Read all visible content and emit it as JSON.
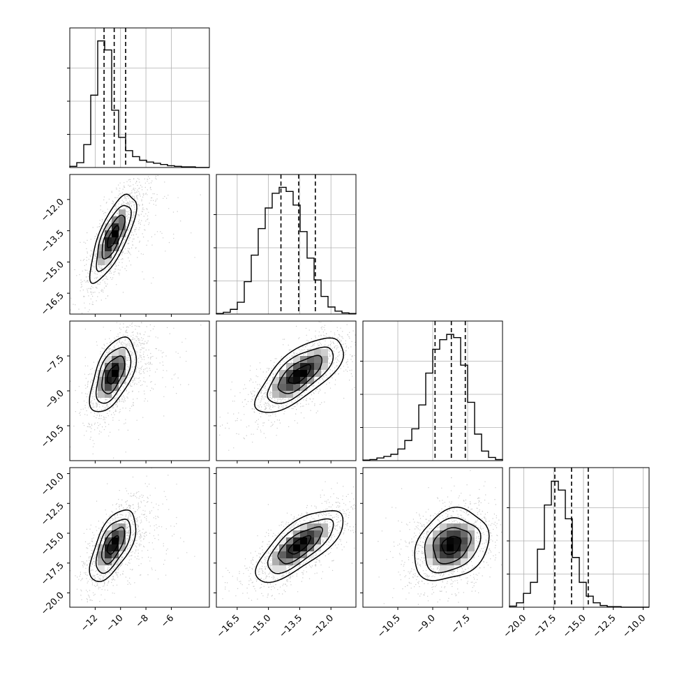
{
  "chart_data": {
    "type": "corner",
    "title": "",
    "dims": 4,
    "grid": true,
    "colors": {
      "frame": "#000000",
      "grid": "#b0b0b0",
      "points": "#8a8a8a",
      "density_dark": "#000000",
      "density_light": "#e8e8e8"
    },
    "params": [
      {
        "index": 0,
        "range": [
          -14.0,
          -3.0
        ],
        "ticks": [
          -12,
          -10,
          -8,
          -6
        ],
        "tick_labels": [
          "−12",
          "−10",
          "−8",
          "−6"
        ],
        "quantiles": [
          -11.3,
          -10.5,
          -9.6
        ]
      },
      {
        "index": 1,
        "range": [
          -17.5,
          -10.8
        ],
        "ticks": [
          -16.5,
          -15.0,
          -13.5,
          -12.0
        ],
        "tick_labels": [
          "−16.5",
          "−15.0",
          "−13.5",
          "−12.0"
        ],
        "quantiles": [
          -14.4,
          -13.55,
          -12.75
        ]
      },
      {
        "index": 2,
        "range": [
          -12.0,
          -6.0
        ],
        "ticks": [
          -10.5,
          -9.0,
          -7.5
        ],
        "tick_labels": [
          "−10.5",
          "−9.0",
          "−7.5"
        ],
        "quantiles": [
          -8.9,
          -8.2,
          -7.6
        ]
      },
      {
        "index": 3,
        "range": [
          -21.2,
          -9.5
        ],
        "ticks": [
          -20.0,
          -17.5,
          -15.0,
          -12.5,
          -10.0
        ],
        "tick_labels": [
          "−20.0",
          "−17.5",
          "−15.0",
          "−12.5",
          "−10.0"
        ],
        "quantiles": [
          -17.4,
          -16.0,
          -14.6
        ]
      }
    ],
    "histograms": [
      {
        "param": 0,
        "bins": [
          -14.0,
          -13.45,
          -12.9,
          -12.35,
          -11.8,
          -11.25,
          -10.7,
          -10.15,
          -9.6,
          -9.05,
          -8.5,
          -7.95,
          -7.4,
          -6.85,
          -6.3,
          -5.75,
          -5.2,
          -4.65,
          -4.1,
          -3.55,
          -3.0
        ],
        "counts": [
          2,
          8,
          38,
          120,
          210,
          195,
          95,
          50,
          28,
          18,
          12,
          9,
          7,
          5,
          3,
          2,
          1,
          1,
          0,
          0
        ],
        "ymax": 220
      },
      {
        "param": 1,
        "bins": [
          -17.5,
          -17.165,
          -16.83,
          -16.495,
          -16.16,
          -15.825,
          -15.49,
          -15.155,
          -14.82,
          -14.485,
          -14.15,
          -13.815,
          -13.48,
          -13.145,
          -12.81,
          -12.475,
          -12.14,
          -11.805,
          -11.47,
          -11.135,
          -10.8
        ],
        "counts": [
          1,
          3,
          8,
          20,
          55,
          100,
          145,
          180,
          205,
          215,
          208,
          185,
          140,
          95,
          58,
          30,
          12,
          5,
          2,
          1
        ],
        "ymax": 225
      },
      {
        "param": 2,
        "bins": [
          -12.0,
          -11.7,
          -11.4,
          -11.1,
          -10.8,
          -10.5,
          -10.2,
          -9.9,
          -9.6,
          -9.3,
          -9.0,
          -8.7,
          -8.4,
          -8.1,
          -7.8,
          -7.5,
          -7.2,
          -6.9,
          -6.6,
          -6.3,
          -6.0
        ],
        "counts": [
          1,
          2,
          5,
          8,
          12,
          22,
          38,
          60,
          105,
          165,
          210,
          228,
          238,
          232,
          180,
          110,
          50,
          18,
          6,
          2
        ],
        "ymax": 250
      },
      {
        "param": 3,
        "bins": [
          -21.2,
          -20.615,
          -20.03,
          -19.445,
          -18.86,
          -18.275,
          -17.69,
          -17.105,
          -16.52,
          -15.935,
          -15.35,
          -14.765,
          -14.18,
          -13.595,
          -13.01,
          -12.425,
          -11.84,
          -11.255,
          -10.67,
          -10.085,
          -9.5
        ],
        "counts": [
          2,
          8,
          25,
          45,
          105,
          185,
          228,
          212,
          160,
          90,
          45,
          20,
          8,
          3,
          1,
          1,
          0,
          0,
          0,
          0
        ],
        "ymax": 240
      }
    ],
    "pairs": [
      {
        "row": 1,
        "col": 0,
        "center": [
          -10.6,
          -13.8
        ],
        "sigma": [
          0.9,
          1.05
        ],
        "rho": 0.75,
        "outlier_tail": {
          "x_shift": 2.0,
          "y_shift": 0.8
        }
      },
      {
        "row": 2,
        "col": 0,
        "center": [
          -10.6,
          -8.3
        ],
        "sigma": [
          0.9,
          0.8
        ],
        "rho": 0.55,
        "outlier_tail": {
          "x_shift": 2.0,
          "y_shift": 0.2
        }
      },
      {
        "row": 2,
        "col": 1,
        "center": [
          -13.5,
          -8.3
        ],
        "sigma": [
          1.05,
          0.8
        ],
        "rho": 0.7,
        "outlier_tail": null
      },
      {
        "row": 3,
        "col": 0,
        "center": [
          -10.6,
          -16.0
        ],
        "sigma": [
          0.9,
          1.5
        ],
        "rho": 0.6,
        "outlier_tail": {
          "x_shift": 2.0,
          "y_shift": 0.5
        }
      },
      {
        "row": 3,
        "col": 1,
        "center": [
          -13.5,
          -16.0
        ],
        "sigma": [
          1.05,
          1.5
        ],
        "rho": 0.72,
        "outlier_tail": null
      },
      {
        "row": 3,
        "col": 2,
        "center": [
          -8.2,
          -16.0
        ],
        "sigma": [
          0.8,
          1.5
        ],
        "rho": 0.25,
        "outlier_tail": null
      }
    ],
    "contour_levels_sigma": [
      0.5,
      1.0,
      1.5,
      2.0
    ]
  }
}
